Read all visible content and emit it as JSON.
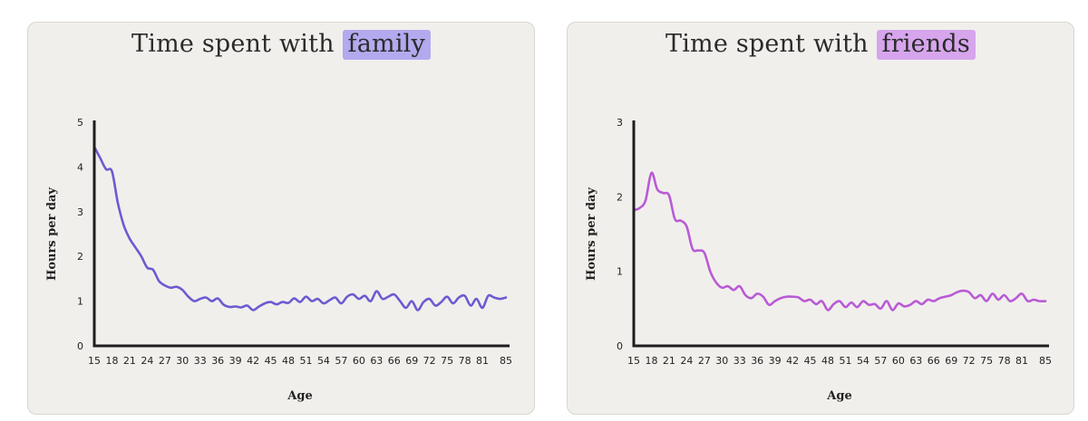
{
  "chart_data": [
    {
      "id": "family",
      "type": "line",
      "title_prefix": "Time spent with ",
      "title_highlight": "family",
      "xlabel": "Age",
      "ylabel": "Hours per day",
      "xlim": [
        15,
        85
      ],
      "ylim": [
        0,
        5
      ],
      "xticks": [
        15,
        18,
        21,
        24,
        27,
        30,
        33,
        36,
        39,
        42,
        45,
        48,
        51,
        54,
        57,
        60,
        63,
        66,
        69,
        72,
        75,
        78,
        81,
        85
      ],
      "yticks": [
        0,
        1,
        2,
        3,
        4,
        5
      ],
      "line_color": "#6c5bd1",
      "highlight_color": "#b3a9ee",
      "series": [
        {
          "name": "family",
          "x": [
            15,
            16,
            17,
            18,
            19,
            20,
            21,
            22,
            23,
            24,
            25,
            26,
            27,
            28,
            29,
            30,
            31,
            32,
            33,
            34,
            35,
            36,
            37,
            38,
            39,
            40,
            41,
            42,
            43,
            44,
            45,
            46,
            47,
            48,
            49,
            50,
            51,
            52,
            53,
            54,
            55,
            56,
            57,
            58,
            59,
            60,
            61,
            62,
            63,
            64,
            65,
            66,
            67,
            68,
            69,
            70,
            71,
            72,
            73,
            74,
            75,
            76,
            77,
            78,
            79,
            80,
            81,
            82,
            83,
            84,
            85
          ],
          "values": [
            4.45,
            4.2,
            3.95,
            3.9,
            3.2,
            2.7,
            2.4,
            2.2,
            2.0,
            1.75,
            1.7,
            1.45,
            1.35,
            1.3,
            1.32,
            1.25,
            1.1,
            1.0,
            1.05,
            1.08,
            1.0,
            1.06,
            0.92,
            0.87,
            0.88,
            0.86,
            0.9,
            0.8,
            0.88,
            0.95,
            0.98,
            0.93,
            0.98,
            0.96,
            1.06,
            0.98,
            1.1,
            1.0,
            1.05,
            0.95,
            1.02,
            1.08,
            0.95,
            1.1,
            1.15,
            1.05,
            1.12,
            1.0,
            1.22,
            1.05,
            1.1,
            1.15,
            1.0,
            0.85,
            1.0,
            0.8,
            0.98,
            1.05,
            0.9,
            0.98,
            1.1,
            0.95,
            1.08,
            1.12,
            0.9,
            1.05,
            0.85,
            1.12,
            1.08,
            1.05,
            1.08
          ]
        }
      ]
    },
    {
      "id": "friends",
      "type": "line",
      "title_prefix": "Time spent with ",
      "title_highlight": "friends",
      "xlabel": "Age",
      "ylabel": "Hours per day",
      "xlim": [
        15,
        85
      ],
      "ylim": [
        0,
        3
      ],
      "xticks": [
        15,
        18,
        21,
        24,
        27,
        30,
        33,
        36,
        39,
        42,
        45,
        48,
        51,
        54,
        57,
        60,
        63,
        66,
        69,
        72,
        75,
        78,
        81,
        85
      ],
      "yticks": [
        0,
        1,
        2,
        3
      ],
      "line_color": "#b95ad6",
      "highlight_color": "#d6a5ec",
      "series": [
        {
          "name": "friends",
          "x": [
            15,
            16,
            17,
            18,
            19,
            20,
            21,
            22,
            23,
            24,
            25,
            26,
            27,
            28,
            29,
            30,
            31,
            32,
            33,
            34,
            35,
            36,
            37,
            38,
            39,
            40,
            41,
            42,
            43,
            44,
            45,
            46,
            47,
            48,
            49,
            50,
            51,
            52,
            53,
            54,
            55,
            56,
            57,
            58,
            59,
            60,
            61,
            62,
            63,
            64,
            65,
            66,
            67,
            68,
            69,
            70,
            71,
            72,
            73,
            74,
            75,
            76,
            77,
            78,
            79,
            80,
            81,
            82,
            83,
            84,
            85
          ],
          "values": [
            1.82,
            1.85,
            1.95,
            2.32,
            2.1,
            2.05,
            2.02,
            1.7,
            1.68,
            1.6,
            1.3,
            1.28,
            1.25,
            1.0,
            0.85,
            0.78,
            0.8,
            0.75,
            0.8,
            0.68,
            0.64,
            0.7,
            0.66,
            0.55,
            0.6,
            0.64,
            0.66,
            0.66,
            0.65,
            0.6,
            0.62,
            0.56,
            0.6,
            0.48,
            0.56,
            0.6,
            0.52,
            0.58,
            0.52,
            0.6,
            0.55,
            0.56,
            0.5,
            0.6,
            0.48,
            0.57,
            0.53,
            0.55,
            0.6,
            0.56,
            0.62,
            0.6,
            0.64,
            0.66,
            0.68,
            0.72,
            0.74,
            0.72,
            0.64,
            0.68,
            0.6,
            0.7,
            0.62,
            0.68,
            0.6,
            0.64,
            0.7,
            0.6,
            0.62,
            0.6,
            0.6
          ]
        }
      ]
    }
  ]
}
